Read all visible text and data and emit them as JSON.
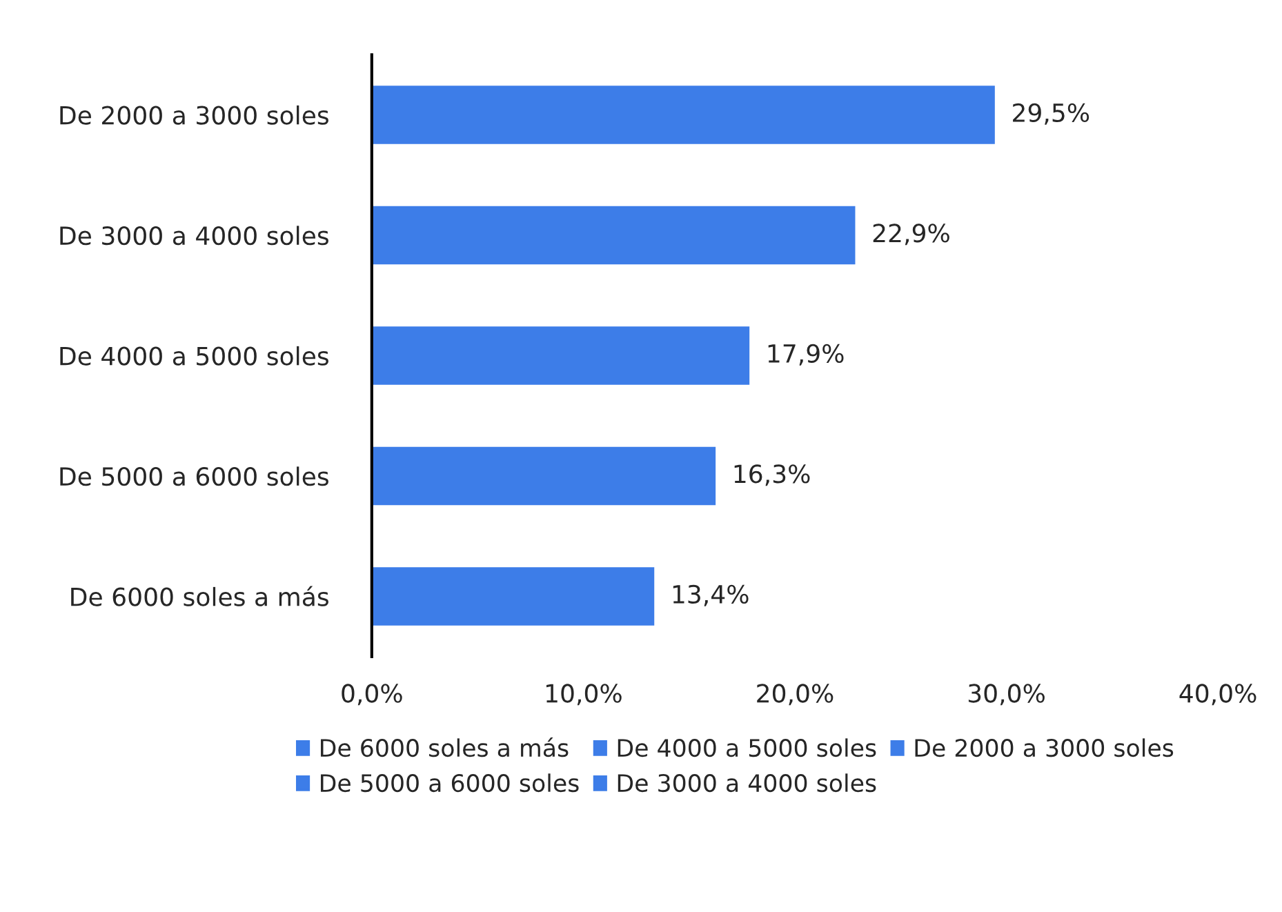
{
  "chart_data": {
    "type": "bar",
    "orientation": "horizontal",
    "stacked": true,
    "categories": [
      "De 2000 a 3000 soles",
      "De 3000 a 4000 soles",
      "De 4000 a 5000 soles",
      "De 5000 a 6000 soles",
      "De 6000 soles a más"
    ],
    "series": [
      {
        "name": "De 6000 soles a más",
        "color": "#3d7de8",
        "values": [
          null,
          null,
          null,
          null,
          13.4
        ],
        "value_labels": [
          null,
          null,
          null,
          null,
          "13,4%"
        ]
      },
      {
        "name": "De 5000 a 6000 soles",
        "color": "#3d7de8",
        "values": [
          null,
          null,
          null,
          16.3,
          null
        ],
        "value_labels": [
          null,
          null,
          null,
          "16,3%",
          null
        ]
      },
      {
        "name": "De 4000 a 5000 soles",
        "color": "#3d7de8",
        "values": [
          null,
          null,
          17.9,
          null,
          null
        ],
        "value_labels": [
          null,
          null,
          "17,9%",
          null,
          null
        ]
      },
      {
        "name": "De 3000 a 4000 soles",
        "color": "#3d7de8",
        "values": [
          null,
          22.9,
          null,
          null,
          null
        ],
        "value_labels": [
          null,
          "22,9%",
          null,
          null,
          null
        ]
      },
      {
        "name": "De 2000 a 3000 soles",
        "color": "#3d7de8",
        "values": [
          29.5,
          null,
          null,
          null,
          null
        ],
        "value_labels": [
          "29,5%",
          null,
          null,
          null,
          null
        ]
      }
    ],
    "xlim": [
      0,
      40
    ],
    "xticks": [
      {
        "value": 0,
        "label": "0,0%"
      },
      {
        "value": 10,
        "label": "10,0%"
      },
      {
        "value": 20,
        "label": "20,0%"
      },
      {
        "value": 30,
        "label": "30,0%"
      },
      {
        "value": 40,
        "label": "40,0%"
      }
    ],
    "grid": false,
    "legend": "bottom"
  }
}
